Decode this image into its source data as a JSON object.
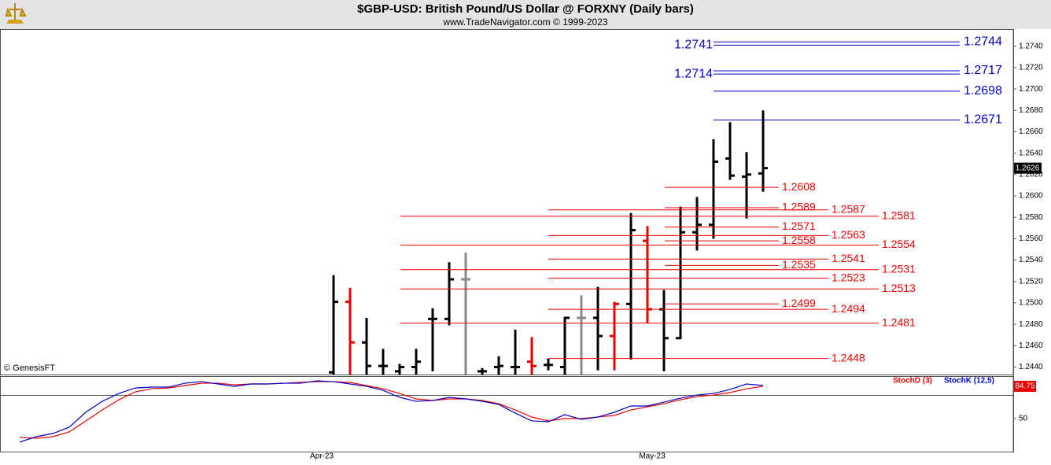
{
  "header": {
    "title": "$GBP-USD:  British Pound/US Dollar @ FORXNY  (Daily bars)",
    "subtitle": "www.TradeNavigator.com © 1999-2023"
  },
  "chart_data": [
    {
      "type": "ohlc",
      "categories": [
        null,
        null,
        null,
        null,
        null,
        null,
        null,
        null,
        null,
        null,
        null,
        null,
        null,
        null,
        null,
        null,
        null,
        null,
        "Apr-23",
        null,
        null,
        null,
        null,
        null,
        null,
        null,
        null,
        null,
        null,
        null,
        null,
        null,
        null,
        null,
        null,
        null,
        null,
        null,
        "May-23",
        null,
        null,
        null,
        null,
        null,
        null,
        null
      ],
      "open": [
        null,
        null,
        null,
        null,
        null,
        null,
        null,
        null,
        null,
        null,
        null,
        null,
        null,
        null,
        null,
        null,
        null,
        null,
        null,
        1.2435,
        1.2501,
        1.2463,
        1.2441,
        1.2436,
        1.244,
        1.2485,
        1.2485,
        1.2522,
        1.2436,
        1.244,
        1.244,
        1.2445,
        1.2442,
        1.244,
        1.2486,
        1.2486,
        1.2469,
        1.2499,
        1.2558,
        1.2494,
        1.2467,
        1.2566,
        1.2573,
        1.2635,
        1.2618,
        1.2621
      ],
      "high": [
        null,
        null,
        null,
        null,
        null,
        null,
        null,
        null,
        null,
        null,
        null,
        null,
        null,
        null,
        null,
        null,
        null,
        null,
        null,
        1.2526,
        1.2514,
        1.2486,
        1.2457,
        1.2443,
        1.2457,
        1.2495,
        1.2538,
        1.2547,
        1.2439,
        1.245,
        1.2475,
        1.2468,
        1.2448,
        1.2487,
        1.2507,
        1.2515,
        1.2501,
        1.2584,
        1.2572,
        1.2512,
        1.259,
        1.2599,
        1.2653,
        1.2669,
        1.2641,
        1.268
      ],
      "low": [
        null,
        null,
        null,
        null,
        null,
        null,
        null,
        null,
        null,
        null,
        null,
        null,
        null,
        null,
        null,
        null,
        null,
        null,
        null,
        1.242,
        1.2425,
        1.243,
        1.243,
        1.243,
        1.2432,
        1.2436,
        1.2479,
        1.2433,
        1.2432,
        1.2432,
        1.2433,
        1.2433,
        1.2437,
        1.2433,
        1.243,
        1.2437,
        1.2437,
        1.2447,
        1.2481,
        1.2436,
        1.2466,
        1.2549,
        1.256,
        1.2615,
        1.2579,
        1.2604
      ],
      "close": [
        null,
        null,
        null,
        null,
        null,
        null,
        null,
        null,
        null,
        null,
        null,
        null,
        null,
        null,
        null,
        null,
        null,
        null,
        null,
        1.2501,
        1.2463,
        1.2441,
        1.2441,
        1.244,
        1.2445,
        1.2485,
        1.2522,
        1.2522,
        1.2436,
        1.2441,
        1.244,
        1.2441,
        1.2442,
        1.2486,
        1.2486,
        1.2469,
        1.2499,
        1.2568,
        1.2494,
        1.2467,
        1.2566,
        1.2573,
        1.2632,
        1.2619,
        1.262,
        1.2626
      ],
      "colors": [
        null,
        null,
        null,
        null,
        null,
        null,
        null,
        null,
        null,
        null,
        null,
        null,
        null,
        null,
        null,
        null,
        null,
        null,
        null,
        "#000000",
        "#ee0000",
        "#000000",
        "#000000",
        "#000000",
        "#000000",
        "#000000",
        "#000000",
        "#888888",
        "#000000",
        "#000000",
        "#000000",
        "#ee0000",
        "#000000",
        "#000000",
        "#888888",
        "#000000",
        "#ee0000",
        "#000000",
        "#ee0000",
        "#000000",
        "#000000",
        "#000000",
        "#000000",
        "#000000",
        "#000000",
        "#000000"
      ],
      "ylim": [
        1.2433,
        1.2756
      ],
      "yticks": [
        {
          "value": 1.244,
          "label": "1.2440"
        },
        {
          "value": 1.246,
          "label": "1.2460"
        },
        {
          "value": 1.248,
          "label": "1.2480"
        },
        {
          "value": 1.25,
          "label": "1.2500"
        },
        {
          "value": 1.252,
          "label": "1.2520"
        },
        {
          "value": 1.254,
          "label": "1.2540"
        },
        {
          "value": 1.256,
          "label": "1.2560"
        },
        {
          "value": 1.258,
          "label": "1.2580"
        },
        {
          "value": 1.26,
          "label": "1.2600"
        },
        {
          "value": 1.262,
          "label": "1.2620"
        },
        {
          "value": 1.264,
          "label": "1.2640"
        },
        {
          "value": 1.266,
          "label": "1.2660"
        },
        {
          "value": 1.268,
          "label": "1.2680"
        },
        {
          "value": 1.27,
          "label": "1.2700"
        },
        {
          "value": 1.272,
          "label": "1.2720"
        },
        {
          "value": 1.274,
          "label": "1.2740"
        }
      ],
      "levels": [
        {
          "color": "#0000cc",
          "values": [
            1.2744,
            1.2717,
            1.2698,
            1.2671
          ]
        },
        {
          "color": "#0000cc",
          "values": [
            1.2741,
            1.2714
          ]
        },
        {
          "color": "#ee0000",
          "values": [
            1.2608,
            1.2589,
            1.2571,
            1.2558,
            1.2535,
            1.2499
          ]
        },
        {
          "color": "#ee0000",
          "values": [
            1.2587,
            1.2563,
            1.2541,
            1.2523,
            1.2494,
            1.2448
          ]
        },
        {
          "color": "#ee0000",
          "values": [
            1.2581,
            1.2554,
            1.2531,
            1.2513,
            1.2481
          ]
        }
      ],
      "credit": "© GenesisFT"
    },
    {
      "type": "line",
      "series": [
        {
          "name": "StochD (3)",
          "color": "#ee0000",
          "values": [
            29.7,
            28.8,
            30.5,
            35.6,
            47.5,
            59.3,
            70.3,
            78.8,
            82.2,
            83.0,
            85.6,
            88.1,
            88.1,
            86.4,
            87.3,
            87.3,
            88.1,
            89.0,
            89.8,
            89.8,
            89.0,
            85.6,
            82.2,
            77.1,
            71.2,
            69.5,
            71.2,
            71.2,
            69.5,
            66.1,
            59.3,
            51.7,
            47.5,
            50,
            50,
            51.7,
            53.4,
            59.3,
            62.7,
            66.1,
            70.3,
            73.7,
            75.4,
            78.0,
            82.2,
            84.75
          ]
        },
        {
          "name": "StochK (12,5)",
          "color": "#0000cc",
          "values": [
            24.6,
            30.5,
            33.9,
            40.7,
            56.8,
            68.6,
            77.1,
            83.0,
            83.9,
            83.9,
            88.1,
            89.8,
            87.3,
            84.7,
            87.3,
            87.3,
            88.1,
            88.1,
            90.7,
            89.8,
            87.3,
            84.7,
            80.5,
            72.9,
            68.6,
            69.5,
            72.9,
            71.2,
            68.6,
            65.2,
            55.9,
            47.5,
            46.6,
            54.2,
            49.2,
            51.7,
            56.8,
            63.6,
            63.6,
            67.8,
            72.0,
            75.4,
            77.1,
            81.3,
            87.3,
            85.6
          ]
        }
      ],
      "ylim": [
        14.4,
        95.8
      ],
      "yticks": [
        50
      ],
      "hline": 75
    }
  ]
}
